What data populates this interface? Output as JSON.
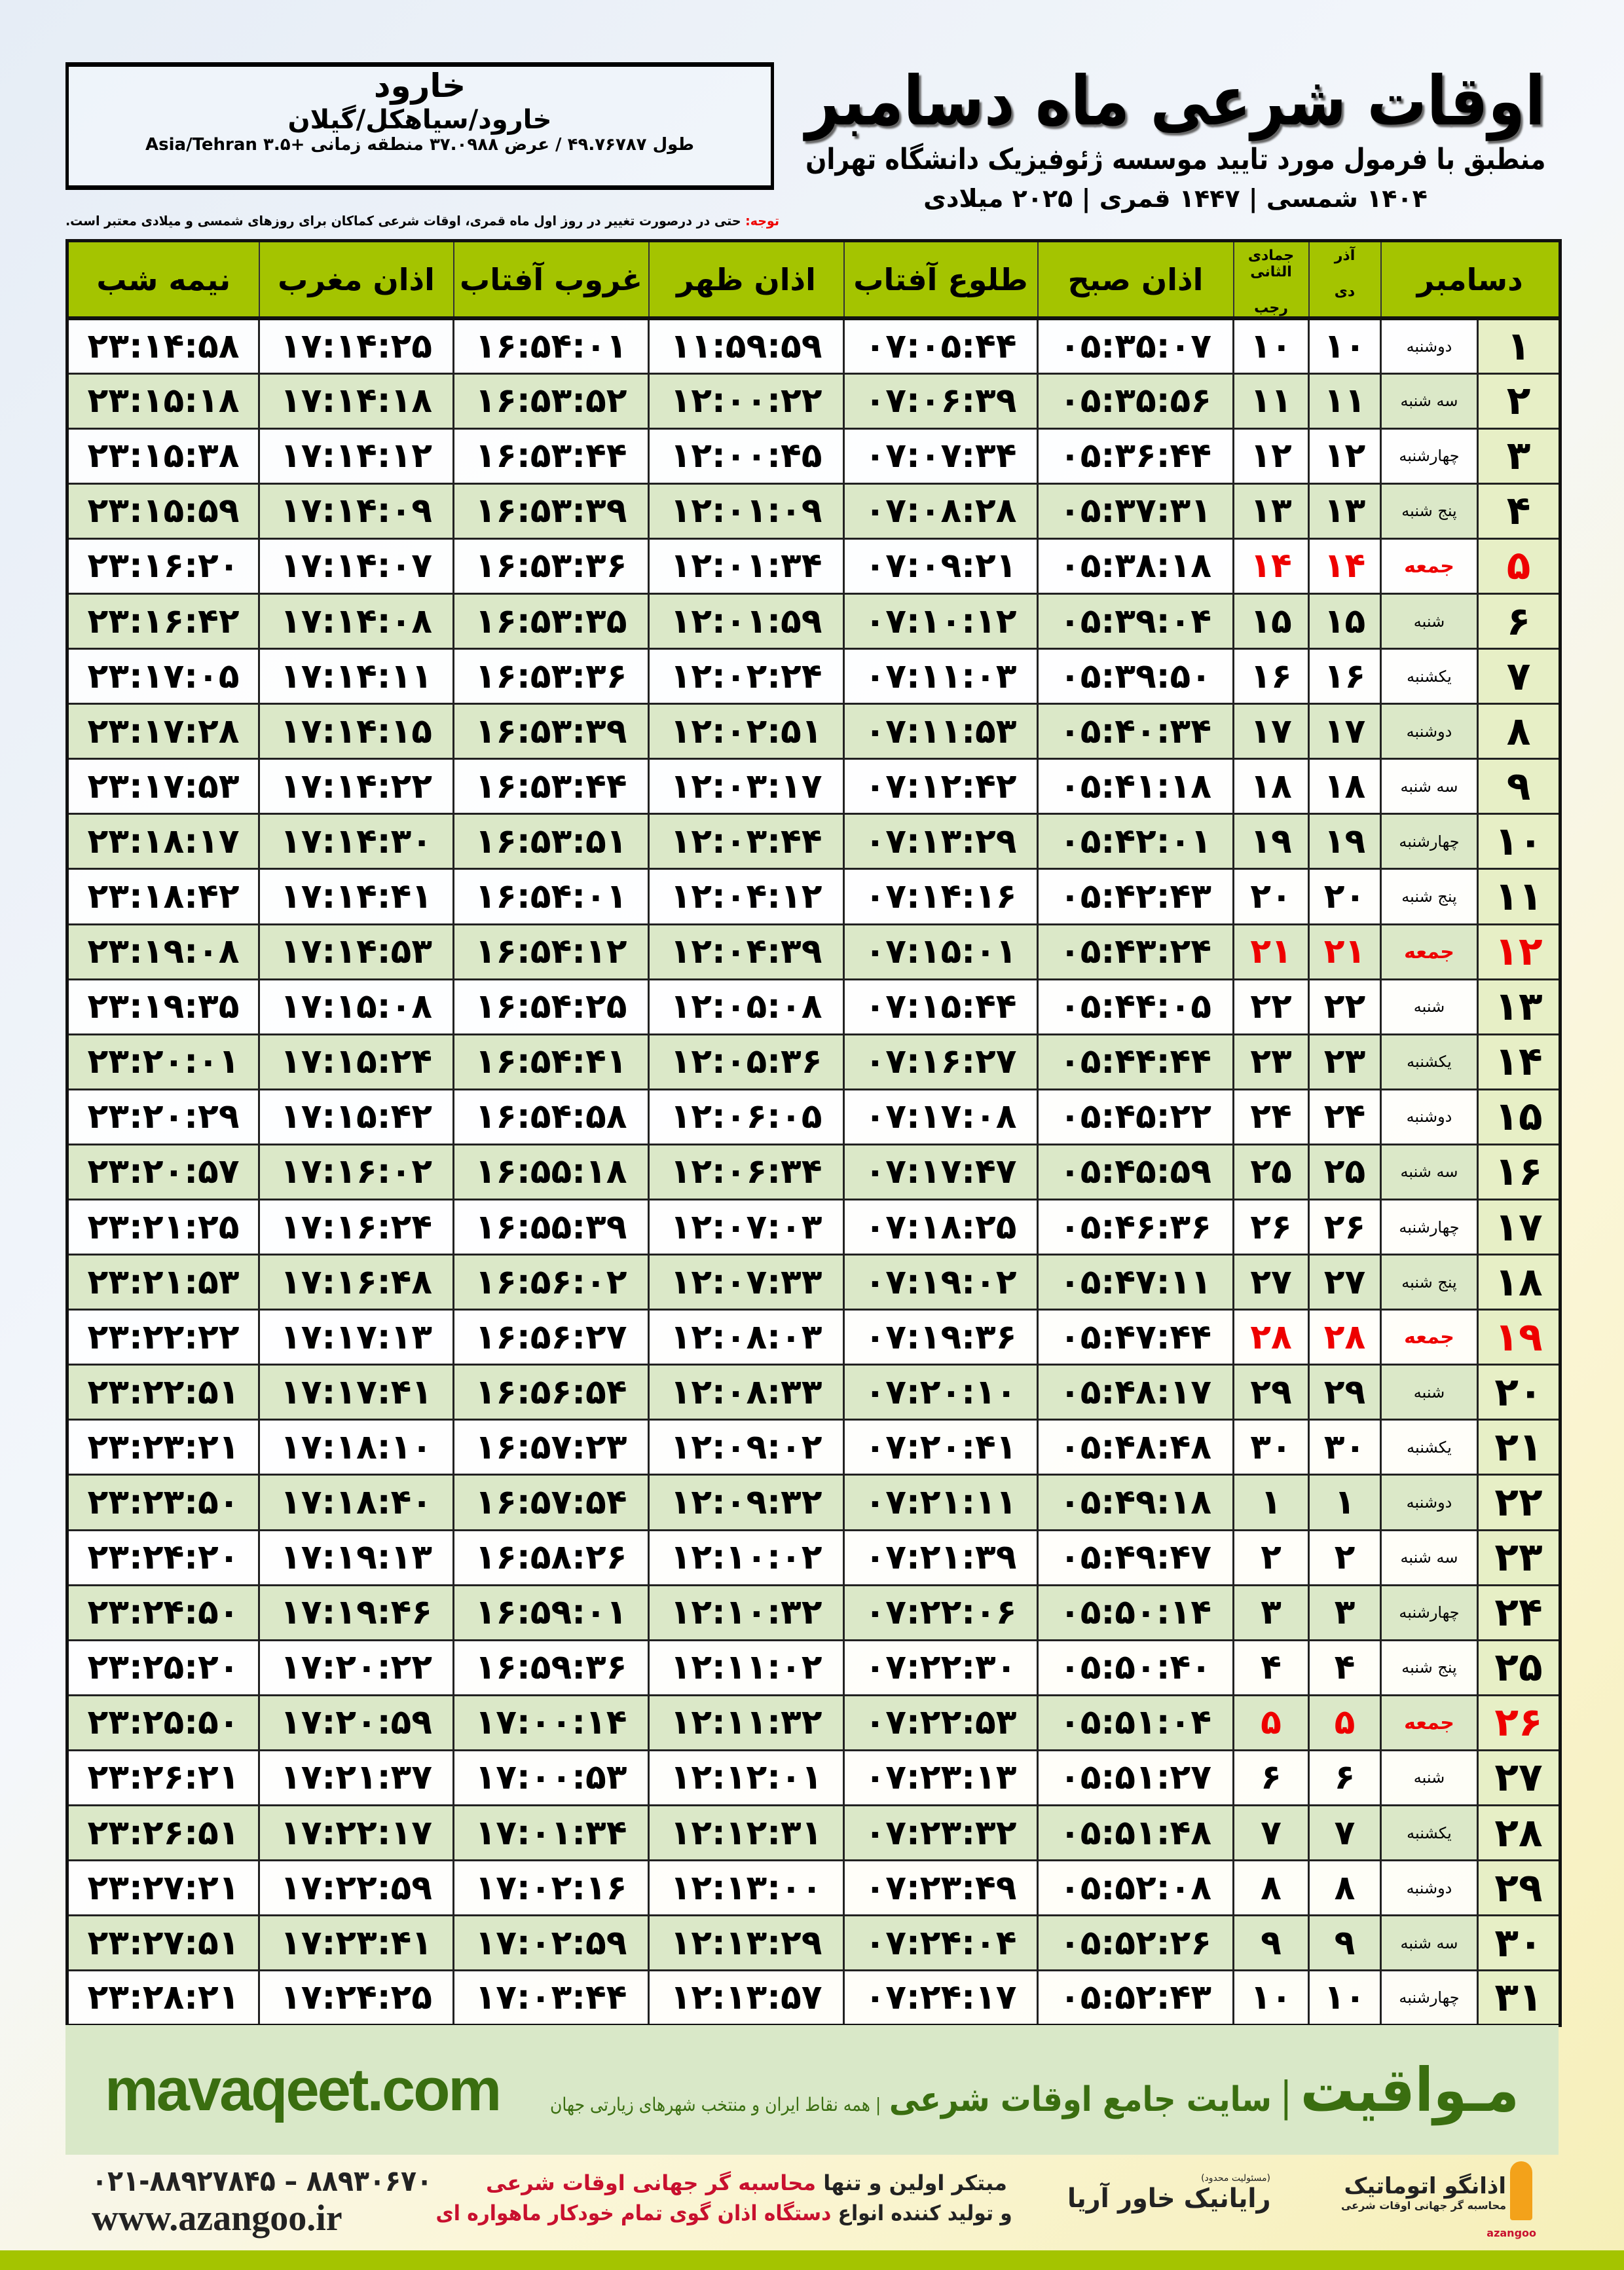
{
  "location": {
    "name": "خارود",
    "region": "خارود/سیاهکل/گیلان",
    "coords": "طول ۴۹.۷۶۷۸۷ / عرض ۳۷.۰۹۸۸ منطقه زمانی +۳.۵ Asia/Tehran"
  },
  "header": {
    "title": "اوقات شرعی ماه دسامبر",
    "subtitle": "منطبق با فرمول مورد تایید موسسه ژئوفیزیک دانشگاه تهران",
    "years": "۱۴۰۴ شمسی | ۱۴۴۷ قمری | ۲۰۲۵ میلادی"
  },
  "note": {
    "label": "توجه:",
    "text": " حتی در درصورت تغییر در روز اول ماه قمری، اوقات شرعی کماکان برای روزهای شمسی و میلادی معتبر است."
  },
  "colors": {
    "header_green": "#a4c400",
    "row_green": "#dbe8c8",
    "friday_red": "#e00000",
    "brand_green": "#3a6e10"
  },
  "table": {
    "columns": {
      "month": "دسامبر",
      "shamsi_top": "آذر",
      "shamsi_bottom": "دی",
      "qamari_top": "جمادی الثانی",
      "qamari_bottom": "رجب",
      "fajr": "اذان صبح",
      "sunrise": "طلوع آفتاب",
      "dhuhr": "اذان ظهر",
      "sunset": "غروب آفتاب",
      "maghrib": "اذان مغرب",
      "midnight": "نیمه شب"
    },
    "rows": [
      [
        "۱",
        "دوشنبه",
        "۱۰",
        "۱۰",
        "۰۵:۳۵:۰۷",
        "۰۷:۰۵:۴۴",
        "۱۱:۵۹:۵۹",
        "۱۶:۵۴:۰۱",
        "۱۷:۱۴:۲۵",
        "۲۳:۱۴:۵۸"
      ],
      [
        "۲",
        "سه شنبه",
        "۱۱",
        "۱۱",
        "۰۵:۳۵:۵۶",
        "۰۷:۰۶:۳۹",
        "۱۲:۰۰:۲۲",
        "۱۶:۵۳:۵۲",
        "۱۷:۱۴:۱۸",
        "۲۳:۱۵:۱۸"
      ],
      [
        "۳",
        "چهارشنبه",
        "۱۲",
        "۱۲",
        "۰۵:۳۶:۴۴",
        "۰۷:۰۷:۳۴",
        "۱۲:۰۰:۴۵",
        "۱۶:۵۳:۴۴",
        "۱۷:۱۴:۱۲",
        "۲۳:۱۵:۳۸"
      ],
      [
        "۴",
        "پنج شنبه",
        "۱۳",
        "۱۳",
        "۰۵:۳۷:۳۱",
        "۰۷:۰۸:۲۸",
        "۱۲:۰۱:۰۹",
        "۱۶:۵۳:۳۹",
        "۱۷:۱۴:۰۹",
        "۲۳:۱۵:۵۹"
      ],
      [
        "۵",
        "جمعه",
        "۱۴",
        "۱۴",
        "۰۵:۳۸:۱۸",
        "۰۷:۰۹:۲۱",
        "۱۲:۰۱:۳۴",
        "۱۶:۵۳:۳۶",
        "۱۷:۱۴:۰۷",
        "۲۳:۱۶:۲۰"
      ],
      [
        "۶",
        "شنبه",
        "۱۵",
        "۱۵",
        "۰۵:۳۹:۰۴",
        "۰۷:۱۰:۱۲",
        "۱۲:۰۱:۵۹",
        "۱۶:۵۳:۳۵",
        "۱۷:۱۴:۰۸",
        "۲۳:۱۶:۴۲"
      ],
      [
        "۷",
        "یکشنبه",
        "۱۶",
        "۱۶",
        "۰۵:۳۹:۵۰",
        "۰۷:۱۱:۰۳",
        "۱۲:۰۲:۲۴",
        "۱۶:۵۳:۳۶",
        "۱۷:۱۴:۱۱",
        "۲۳:۱۷:۰۵"
      ],
      [
        "۸",
        "دوشنبه",
        "۱۷",
        "۱۷",
        "۰۵:۴۰:۳۴",
        "۰۷:۱۱:۵۳",
        "۱۲:۰۲:۵۱",
        "۱۶:۵۳:۳۹",
        "۱۷:۱۴:۱۵",
        "۲۳:۱۷:۲۸"
      ],
      [
        "۹",
        "سه شنبه",
        "۱۸",
        "۱۸",
        "۰۵:۴۱:۱۸",
        "۰۷:۱۲:۴۲",
        "۱۲:۰۳:۱۷",
        "۱۶:۵۳:۴۴",
        "۱۷:۱۴:۲۲",
        "۲۳:۱۷:۵۳"
      ],
      [
        "۱۰",
        "چهارشنبه",
        "۱۹",
        "۱۹",
        "۰۵:۴۲:۰۱",
        "۰۷:۱۳:۲۹",
        "۱۲:۰۳:۴۴",
        "۱۶:۵۳:۵۱",
        "۱۷:۱۴:۳۰",
        "۲۳:۱۸:۱۷"
      ],
      [
        "۱۱",
        "پنج شنبه",
        "۲۰",
        "۲۰",
        "۰۵:۴۲:۴۳",
        "۰۷:۱۴:۱۶",
        "۱۲:۰۴:۱۲",
        "۱۶:۵۴:۰۱",
        "۱۷:۱۴:۴۱",
        "۲۳:۱۸:۴۲"
      ],
      [
        "۱۲",
        "جمعه",
        "۲۱",
        "۲۱",
        "۰۵:۴۳:۲۴",
        "۰۷:۱۵:۰۱",
        "۱۲:۰۴:۳۹",
        "۱۶:۵۴:۱۲",
        "۱۷:۱۴:۵۳",
        "۲۳:۱۹:۰۸"
      ],
      [
        "۱۳",
        "شنبه",
        "۲۲",
        "۲۲",
        "۰۵:۴۴:۰۵",
        "۰۷:۱۵:۴۴",
        "۱۲:۰۵:۰۸",
        "۱۶:۵۴:۲۵",
        "۱۷:۱۵:۰۸",
        "۲۳:۱۹:۳۵"
      ],
      [
        "۱۴",
        "یکشنبه",
        "۲۳",
        "۲۳",
        "۰۵:۴۴:۴۴",
        "۰۷:۱۶:۲۷",
        "۱۲:۰۵:۳۶",
        "۱۶:۵۴:۴۱",
        "۱۷:۱۵:۲۴",
        "۲۳:۲۰:۰۱"
      ],
      [
        "۱۵",
        "دوشنبه",
        "۲۴",
        "۲۴",
        "۰۵:۴۵:۲۲",
        "۰۷:۱۷:۰۸",
        "۱۲:۰۶:۰۵",
        "۱۶:۵۴:۵۸",
        "۱۷:۱۵:۴۲",
        "۲۳:۲۰:۲۹"
      ],
      [
        "۱۶",
        "سه شنبه",
        "۲۵",
        "۲۵",
        "۰۵:۴۵:۵۹",
        "۰۷:۱۷:۴۷",
        "۱۲:۰۶:۳۴",
        "۱۶:۵۵:۱۸",
        "۱۷:۱۶:۰۲",
        "۲۳:۲۰:۵۷"
      ],
      [
        "۱۷",
        "چهارشنبه",
        "۲۶",
        "۲۶",
        "۰۵:۴۶:۳۶",
        "۰۷:۱۸:۲۵",
        "۱۲:۰۷:۰۳",
        "۱۶:۵۵:۳۹",
        "۱۷:۱۶:۲۴",
        "۲۳:۲۱:۲۵"
      ],
      [
        "۱۸",
        "پنج شنبه",
        "۲۷",
        "۲۷",
        "۰۵:۴۷:۱۱",
        "۰۷:۱۹:۰۲",
        "۱۲:۰۷:۳۳",
        "۱۶:۵۶:۰۲",
        "۱۷:۱۶:۴۸",
        "۲۳:۲۱:۵۳"
      ],
      [
        "۱۹",
        "جمعه",
        "۲۸",
        "۲۸",
        "۰۵:۴۷:۴۴",
        "۰۷:۱۹:۳۶",
        "۱۲:۰۸:۰۳",
        "۱۶:۵۶:۲۷",
        "۱۷:۱۷:۱۳",
        "۲۳:۲۲:۲۲"
      ],
      [
        "۲۰",
        "شنبه",
        "۲۹",
        "۲۹",
        "۰۵:۴۸:۱۷",
        "۰۷:۲۰:۱۰",
        "۱۲:۰۸:۳۳",
        "۱۶:۵۶:۵۴",
        "۱۷:۱۷:۴۱",
        "۲۳:۲۲:۵۱"
      ],
      [
        "۲۱",
        "یکشنبه",
        "۳۰",
        "۳۰",
        "۰۵:۴۸:۴۸",
        "۰۷:۲۰:۴۱",
        "۱۲:۰۹:۰۲",
        "۱۶:۵۷:۲۳",
        "۱۷:۱۸:۱۰",
        "۲۳:۲۳:۲۱"
      ],
      [
        "۲۲",
        "دوشنبه",
        "۱",
        "۱",
        "۰۵:۴۹:۱۸",
        "۰۷:۲۱:۱۱",
        "۱۲:۰۹:۳۲",
        "۱۶:۵۷:۵۴",
        "۱۷:۱۸:۴۰",
        "۲۳:۲۳:۵۰"
      ],
      [
        "۲۳",
        "سه شنبه",
        "۲",
        "۲",
        "۰۵:۴۹:۴۷",
        "۰۷:۲۱:۳۹",
        "۱۲:۱۰:۰۲",
        "۱۶:۵۸:۲۶",
        "۱۷:۱۹:۱۳",
        "۲۳:۲۴:۲۰"
      ],
      [
        "۲۴",
        "چهارشنبه",
        "۳",
        "۳",
        "۰۵:۵۰:۱۴",
        "۰۷:۲۲:۰۶",
        "۱۲:۱۰:۳۲",
        "۱۶:۵۹:۰۱",
        "۱۷:۱۹:۴۶",
        "۲۳:۲۴:۵۰"
      ],
      [
        "۲۵",
        "پنج شنبه",
        "۴",
        "۴",
        "۰۵:۵۰:۴۰",
        "۰۷:۲۲:۳۰",
        "۱۲:۱۱:۰۲",
        "۱۶:۵۹:۳۶",
        "۱۷:۲۰:۲۲",
        "۲۳:۲۵:۲۰"
      ],
      [
        "۲۶",
        "جمعه",
        "۵",
        "۵",
        "۰۵:۵۱:۰۴",
        "۰۷:۲۲:۵۳",
        "۱۲:۱۱:۳۲",
        "۱۷:۰۰:۱۴",
        "۱۷:۲۰:۵۹",
        "۲۳:۲۵:۵۰"
      ],
      [
        "۲۷",
        "شنبه",
        "۶",
        "۶",
        "۰۵:۵۱:۲۷",
        "۰۷:۲۳:۱۳",
        "۱۲:۱۲:۰۱",
        "۱۷:۰۰:۵۳",
        "۱۷:۲۱:۳۷",
        "۲۳:۲۶:۲۱"
      ],
      [
        "۲۸",
        "یکشنبه",
        "۷",
        "۷",
        "۰۵:۵۱:۴۸",
        "۰۷:۲۳:۳۲",
        "۱۲:۱۲:۳۱",
        "۱۷:۰۱:۳۴",
        "۱۷:۲۲:۱۷",
        "۲۳:۲۶:۵۱"
      ],
      [
        "۲۹",
        "دوشنبه",
        "۸",
        "۸",
        "۰۵:۵۲:۰۸",
        "۰۷:۲۳:۴۹",
        "۱۲:۱۳:۰۰",
        "۱۷:۰۲:۱۶",
        "۱۷:۲۲:۵۹",
        "۲۳:۲۷:۲۱"
      ],
      [
        "۳۰",
        "سه شنبه",
        "۹",
        "۹",
        "۰۵:۵۲:۲۶",
        "۰۷:۲۴:۰۴",
        "۱۲:۱۳:۲۹",
        "۱۷:۰۲:۵۹",
        "۱۷:۲۳:۴۱",
        "۲۳:۲۷:۵۱"
      ],
      [
        "۳۱",
        "چهارشنبه",
        "۱۰",
        "۱۰",
        "۰۵:۵۲:۴۳",
        "۰۷:۲۴:۱۷",
        "۱۲:۱۳:۵۷",
        "۱۷:۰۳:۴۴",
        "۱۷:۲۴:۲۵",
        "۲۳:۲۸:۲۱"
      ]
    ]
  },
  "banner": {
    "brand": "مـواقیت",
    "separator": "|",
    "tagline": "سایت جامع اوقات شرعی",
    "subline": "| همه نقاط ایران و منتخب شهرهای زیارتی جهان",
    "url": "mavaqeet.com"
  },
  "footer": {
    "phones": "۰۲۱-۸۸۹۲۷۸۴۵ – ۸۸۹۳۰۶۷۰",
    "website": "www.azangoo.ir",
    "promo_line1_a": "مبتکر اولین و تنها ",
    "promo_line1_b": "محاسبه گر جهانی اوقات شرعی",
    "promo_line2_a": "و تولید کننده انواع ",
    "promo_line2_b": "دستگاه اذان گوی تمام خودکار ماهواره ای",
    "logo1_tag": "(مسئولیت محدود)",
    "logo1_name": "رایانیک خاور آریا",
    "logo2_name": "اذانگو اتوماتیک",
    "logo2_tag": "محاسبه گر جهانی اوقات شرعی",
    "logo2_en": "azangoo"
  }
}
